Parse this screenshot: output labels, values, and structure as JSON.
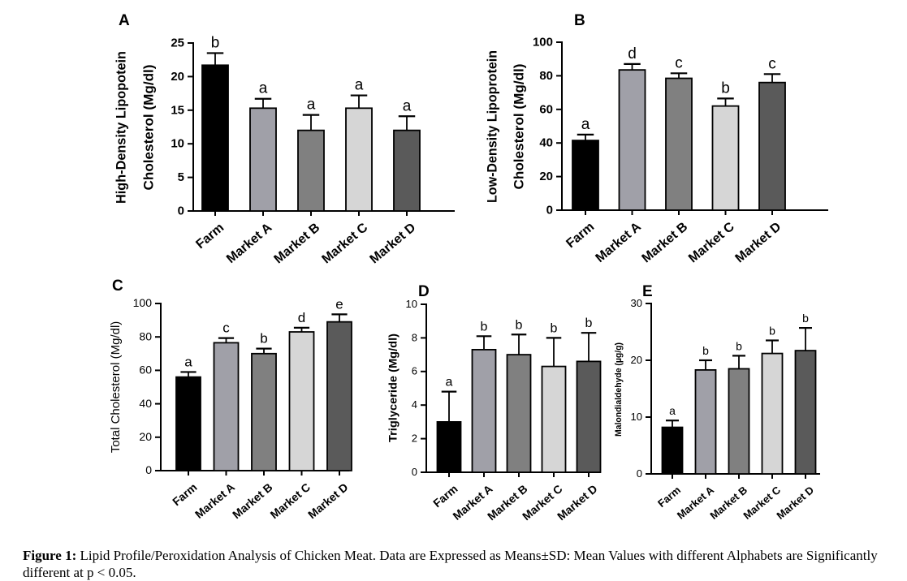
{
  "figure": {
    "caption_label": "Figure 1:",
    "caption_text": "Lipid Profile/Peroxidation Analysis of Chicken Meat. Data are Expressed as Means±SD: Mean Values with different Alphabets are Significantly different at p < 0.05."
  },
  "colors": [
    "#000000",
    "#a0a0a8",
    "#808080",
    "#d6d6d6",
    "#5a5a5a"
  ],
  "chart_data": [
    {
      "panel": "A",
      "type": "bar",
      "categories": [
        "Farm",
        "Market A",
        "Market B",
        "Market C",
        "Market D"
      ],
      "values": [
        21.7,
        15.3,
        12.0,
        15.3,
        12.0
      ],
      "errors": [
        1.8,
        1.4,
        2.3,
        1.9,
        2.1
      ],
      "letters": [
        "b",
        "a",
        "a",
        "a",
        "a"
      ],
      "ylabel": [
        "High-Density Lipopotein",
        "Cholesterol (Mg/dl)"
      ],
      "ylim": [
        0,
        25
      ],
      "yticks": [
        0,
        5,
        10,
        15,
        20,
        25
      ]
    },
    {
      "panel": "B",
      "type": "bar",
      "categories": [
        "Farm",
        "Market A",
        "Market B",
        "Market C",
        "Market D"
      ],
      "values": [
        41.5,
        83.5,
        78.5,
        62.0,
        76.0
      ],
      "errors": [
        3.5,
        3.5,
        3.0,
        4.5,
        5.0
      ],
      "letters": [
        "a",
        "d",
        "c",
        "b",
        "c"
      ],
      "ylabel": [
        "Low-Density Lipoprotein",
        "Cholesterol (Mg/dl)"
      ],
      "ylim": [
        0,
        100
      ],
      "yticks": [
        0,
        20,
        40,
        60,
        80,
        100
      ]
    },
    {
      "panel": "C",
      "type": "bar",
      "categories": [
        "Farm",
        "Market A",
        "Market B",
        "Market C",
        "Market D"
      ],
      "values": [
        56.0,
        76.5,
        70.0,
        83.0,
        89.0
      ],
      "errors": [
        3.0,
        2.8,
        3.0,
        2.5,
        4.5
      ],
      "letters": [
        "a",
        "c",
        "b",
        "d",
        "e"
      ],
      "ylabel": [
        "Total Cholesterol (Mg/dl)"
      ],
      "ylim": [
        0,
        100
      ],
      "yticks": [
        0,
        20,
        40,
        60,
        80,
        100
      ]
    },
    {
      "panel": "D",
      "type": "bar",
      "categories": [
        "Farm",
        "Market A",
        "Market B",
        "Market C",
        "Market D"
      ],
      "values": [
        3.0,
        7.3,
        7.0,
        6.3,
        6.6
      ],
      "errors": [
        1.8,
        0.8,
        1.2,
        1.7,
        1.7
      ],
      "letters": [
        "a",
        "b",
        "b",
        "b",
        "b"
      ],
      "ylabel": [
        "Triglyceride (Mg/dl)"
      ],
      "ylim": [
        0,
        10
      ],
      "yticks": [
        0,
        2,
        4,
        6,
        8,
        10
      ]
    },
    {
      "panel": "E",
      "type": "bar",
      "categories": [
        "Farm",
        "Market A",
        "Market B",
        "Market C",
        "Market D"
      ],
      "values": [
        8.2,
        18.3,
        18.5,
        21.2,
        21.7
      ],
      "errors": [
        1.2,
        1.7,
        2.3,
        2.3,
        4.0
      ],
      "letters": [
        "a",
        "b",
        "b",
        "b",
        "b"
      ],
      "ylabel": [
        "Malondialdehyde (µg/g)"
      ],
      "ylim": [
        0,
        30
      ],
      "yticks": [
        0,
        10,
        20,
        30
      ]
    }
  ]
}
